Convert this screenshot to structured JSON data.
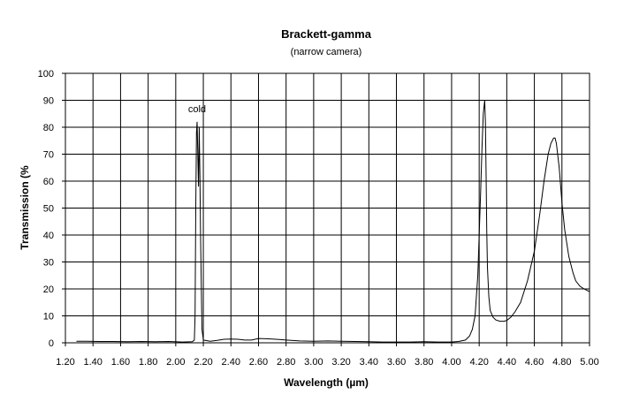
{
  "chart_data": {
    "type": "line",
    "title": "Brackett-gamma",
    "subtitle": "(narrow camera)",
    "xlabel": "Wavelength (µm)",
    "ylabel": "Transmission (%",
    "xlim": [
      1.2,
      5.0
    ],
    "ylim": [
      0,
      100
    ],
    "xticks": [
      "1.20",
      "1.40",
      "1.60",
      "1.80",
      "2.00",
      "2.20",
      "2.40",
      "2.60",
      "2.80",
      "3.00",
      "3.20",
      "3.40",
      "3.60",
      "3.80",
      "4.00",
      "4.20",
      "4.40",
      "4.60",
      "4.80",
      "5.00"
    ],
    "yticks": [
      "0",
      "10",
      "20",
      "30",
      "40",
      "50",
      "60",
      "70",
      "80",
      "90",
      "100"
    ],
    "grid": true,
    "annotations": [
      {
        "text": "cold",
        "x": 2.09,
        "y": 85.5
      }
    ],
    "series": [
      {
        "x": [
          1.28,
          1.35,
          1.45,
          1.55,
          1.65,
          1.75,
          1.85,
          1.95,
          2.05,
          2.12,
          2.135,
          2.14,
          2.145,
          2.15,
          2.155,
          2.16,
          2.165,
          2.17,
          2.175,
          2.18,
          2.19,
          2.2,
          2.25,
          2.3,
          2.35,
          2.4,
          2.45,
          2.5,
          2.55,
          2.6,
          2.65,
          2.7,
          2.75,
          2.8,
          2.9,
          3.0,
          3.1,
          3.2,
          3.3,
          3.4,
          3.5,
          3.6,
          3.7,
          3.8,
          3.9,
          4.0,
          4.05,
          4.1,
          4.13,
          4.15,
          4.17,
          4.19,
          4.21,
          4.22,
          4.23,
          4.24,
          4.245,
          4.25,
          4.255,
          4.26,
          4.27,
          4.28,
          4.3,
          4.32,
          4.35,
          4.38,
          4.4,
          4.43,
          4.46,
          4.5,
          4.55,
          4.6,
          4.64,
          4.67,
          4.7,
          4.72,
          4.74,
          4.75,
          4.76,
          4.78,
          4.8,
          4.82,
          4.85,
          4.88,
          4.9,
          4.93,
          4.96,
          5.0
        ],
        "values": [
          0.6,
          0.6,
          0.5,
          0.5,
          0.4,
          0.5,
          0.4,
          0.5,
          0.3,
          0.4,
          1.0,
          10,
          50,
          78,
          82,
          70,
          58,
          80,
          62,
          40,
          5,
          1,
          0.6,
          0.9,
          1.3,
          1.4,
          1.3,
          1.0,
          1.0,
          1.6,
          1.5,
          1.4,
          1.2,
          1.0,
          0.7,
          0.6,
          0.7,
          0.6,
          0.5,
          0.4,
          0.3,
          0.3,
          0.3,
          0.4,
          0.3,
          0.3,
          0.5,
          1.0,
          2.5,
          5,
          10,
          25,
          55,
          72,
          85,
          90,
          82,
          62,
          42,
          28,
          17,
          12,
          9.5,
          8.5,
          8.0,
          8.0,
          8.3,
          9.5,
          11.5,
          15,
          23,
          34,
          48,
          60,
          70,
          74,
          76,
          76,
          74,
          65,
          52,
          42,
          32,
          26,
          23,
          21,
          20,
          19
        ]
      }
    ]
  }
}
